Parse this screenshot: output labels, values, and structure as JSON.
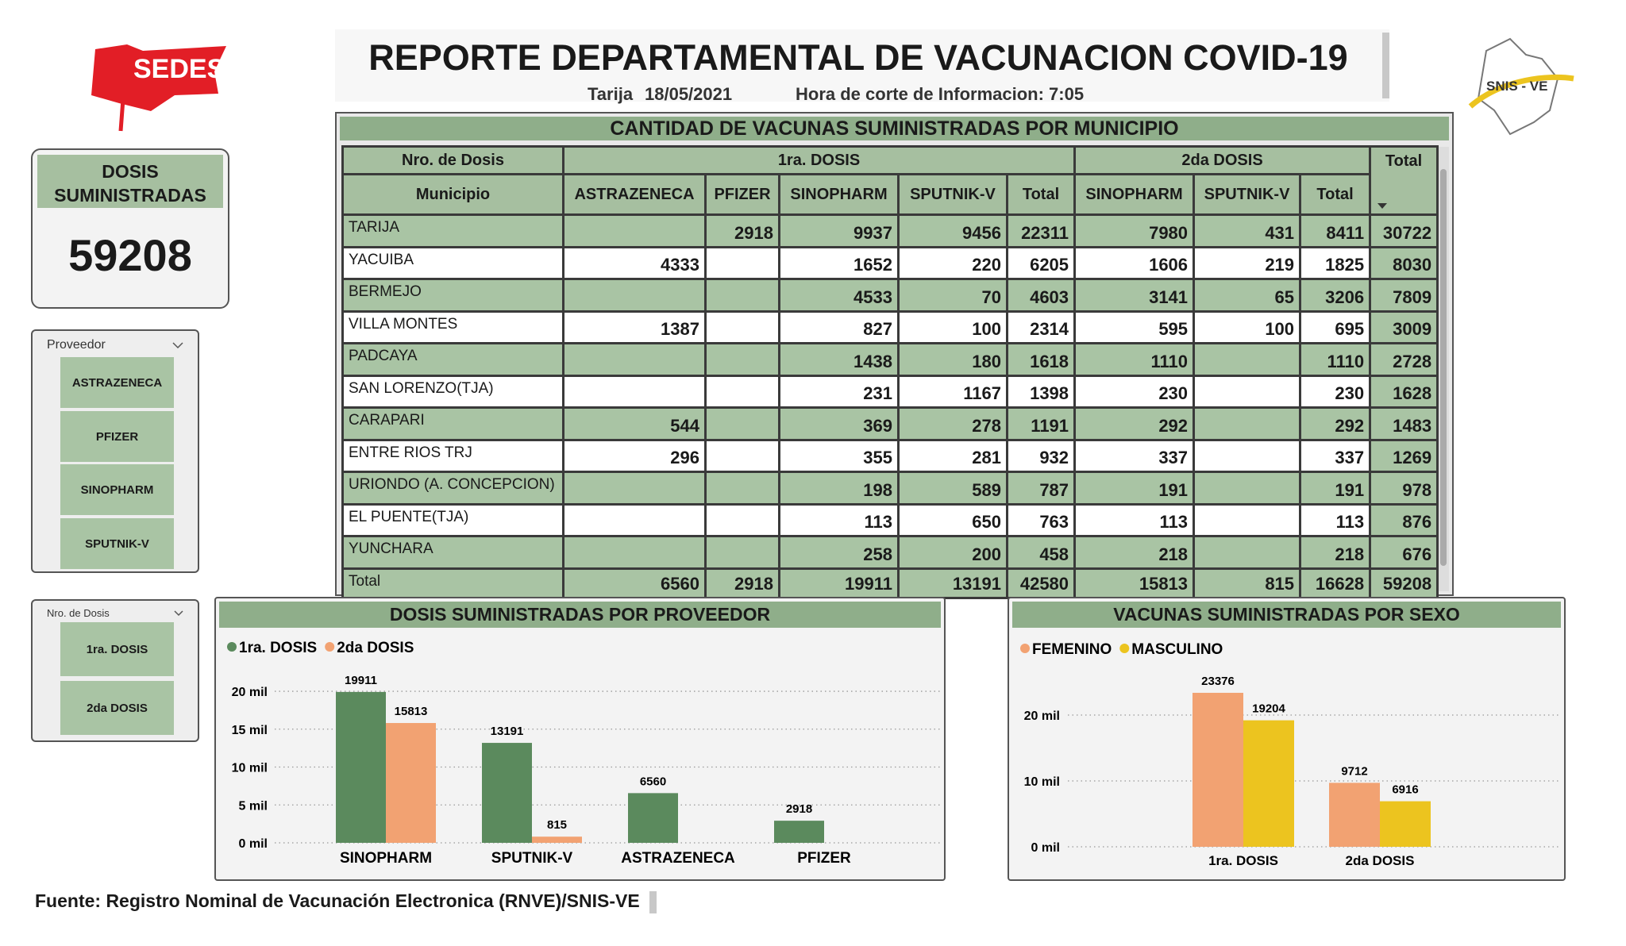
{
  "header": {
    "title": "REPORTE DEPARTAMENTAL DE VACUNACION COVID-19",
    "location": "Tarija",
    "date": "18/05/2021",
    "cutoff": "Hora de corte de Informacion: 7:05"
  },
  "logos": {
    "left": "SEDES",
    "right": "SNIS - VE"
  },
  "kpi": {
    "title": "DOSIS SUMINISTRADAS",
    "value": 59208
  },
  "slicers": [
    {
      "title": "Proveedor",
      "items": [
        "ASTRAZENECA",
        "PFIZER",
        "SINOPHARM",
        "SPUTNIK-V"
      ]
    },
    {
      "title": "Nro. de Dosis",
      "items": [
        "1ra. DOSIS",
        "2da DOSIS"
      ]
    }
  ],
  "table": {
    "title": "CANTIDAD DE VACUNAS SUMINISTRADAS POR MUNICIPIO",
    "group_header": [
      "Nro. de Dosis",
      "1ra. DOSIS",
      "2da DOSIS",
      "Total"
    ],
    "columns": [
      "Municipio",
      "ASTRAZENECA",
      "PFIZER",
      "SINOPHARM",
      "SPUTNIK-V",
      "Total",
      "SINOPHARM",
      "SPUTNIK-V",
      "Total"
    ],
    "rows": [
      [
        "TARIJA",
        null,
        2918,
        9937,
        9456,
        22311,
        7980,
        431,
        8411,
        30722
      ],
      [
        "YACUIBA",
        4333,
        null,
        1652,
        220,
        6205,
        1606,
        219,
        1825,
        8030
      ],
      [
        "BERMEJO",
        null,
        null,
        4533,
        70,
        4603,
        3141,
        65,
        3206,
        7809
      ],
      [
        "VILLA MONTES",
        1387,
        null,
        827,
        100,
        2314,
        595,
        100,
        695,
        3009
      ],
      [
        "PADCAYA",
        null,
        null,
        1438,
        180,
        1618,
        1110,
        null,
        1110,
        2728
      ],
      [
        "SAN LORENZO(TJA)",
        null,
        null,
        231,
        1167,
        1398,
        230,
        null,
        230,
        1628
      ],
      [
        "CARAPARI",
        544,
        null,
        369,
        278,
        1191,
        292,
        null,
        292,
        1483
      ],
      [
        "ENTRE RIOS TRJ",
        296,
        null,
        355,
        281,
        932,
        337,
        null,
        337,
        1269
      ],
      [
        "URIONDO (A. CONCEPCION)",
        null,
        null,
        198,
        589,
        787,
        191,
        null,
        191,
        978
      ],
      [
        "EL PUENTE(TJA)",
        null,
        null,
        113,
        650,
        763,
        113,
        null,
        113,
        876
      ],
      [
        "YUNCHARA",
        null,
        null,
        258,
        200,
        458,
        218,
        null,
        218,
        676
      ],
      [
        "Total",
        6560,
        2918,
        19911,
        13191,
        42580,
        15813,
        815,
        16628,
        59208
      ]
    ]
  },
  "chart_data": [
    {
      "type": "bar",
      "title": "DOSIS SUMINISTRADAS POR PROVEEDOR",
      "categories": [
        "SINOPHARM",
        "SPUTNIK-V",
        "ASTRAZENECA",
        "PFIZER"
      ],
      "series": [
        {
          "name": "1ra. DOSIS",
          "color": "#5b8a5d",
          "values": [
            19911,
            13191,
            6560,
            2918
          ]
        },
        {
          "name": "2da DOSIS",
          "color": "#f2a272",
          "values": [
            15813,
            815,
            null,
            null
          ]
        }
      ],
      "ylim": [
        0,
        21000
      ],
      "yticks": [
        {
          "value": 0,
          "label": "0 mil"
        },
        {
          "value": 5000,
          "label": "5 mil"
        },
        {
          "value": 10000,
          "label": "10 mil"
        },
        {
          "value": 15000,
          "label": "15 mil"
        },
        {
          "value": 20000,
          "label": "20 mil"
        }
      ],
      "grid": true,
      "legend": "top-left"
    },
    {
      "type": "bar",
      "title": "VACUNAS SUMINISTRADAS POR SEXO",
      "categories": [
        "1ra. DOSIS",
        "2da DOSIS"
      ],
      "series": [
        {
          "name": "FEMENINO",
          "color": "#f2a272",
          "values": [
            23376,
            9712
          ]
        },
        {
          "name": "MASCULINO",
          "color": "#ecc41f",
          "values": [
            19204,
            6916
          ]
        }
      ],
      "ylim": [
        0,
        25000
      ],
      "yticks": [
        {
          "value": 0,
          "label": "0 mil"
        },
        {
          "value": 10000,
          "label": "10 mil"
        },
        {
          "value": 20000,
          "label": "20 mil"
        }
      ],
      "grid": true,
      "legend": "top-left"
    }
  ],
  "footer": {
    "source": "Fuente: Registro Nominal de Vacunación Electronica (RNVE)/SNIS-VE"
  }
}
